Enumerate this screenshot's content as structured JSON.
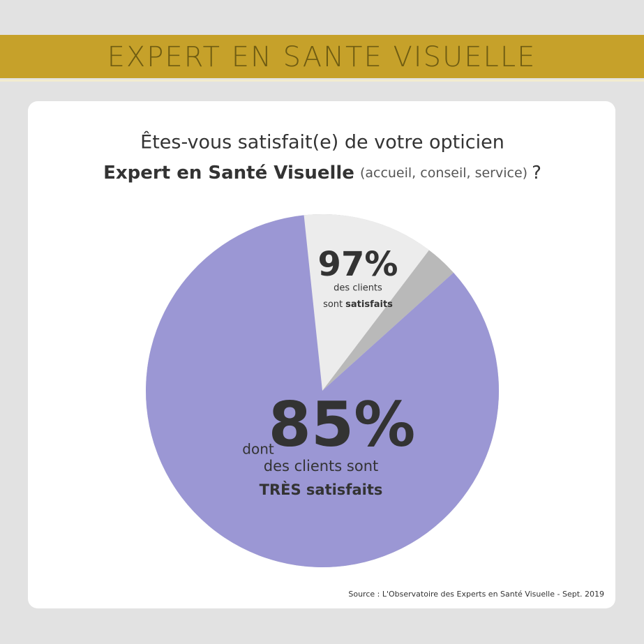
{
  "header": {
    "title": "EXPERT EN SANTE VISUELLE"
  },
  "chart_data": {
    "type": "pie",
    "title": "Êtes-vous satisfait(e) de votre opticien",
    "subtitle": {
      "bold": "Expert en Santé Visuelle",
      "note": "(accueil, conseil, service)",
      "end": "?"
    },
    "values": [
      97,
      85
    ],
    "value_labels": [
      "97%",
      "85%"
    ],
    "colors": [
      "#ececec",
      "#9b97d4"
    ],
    "annotations": [
      {
        "line1": "des clients",
        "line2": "sont",
        "line2_bold": "satisfaits"
      },
      {
        "prefix": "dont",
        "line1": "des clients sont",
        "line2_bold": "TRÈS satisfaits"
      }
    ],
    "source": "Source : L'Observatoire des Experts en Santé Visuelle - Sept. 2019"
  }
}
